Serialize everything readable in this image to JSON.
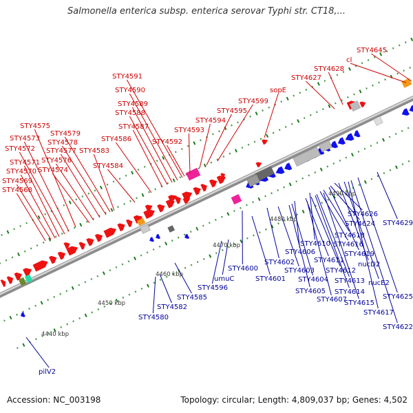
{
  "title": "Salmonella enterica subsp. enterica serovar Typhi str. CT18,...",
  "footer": {
    "accession": "Accession: NC_003198",
    "stats": "Topology: circular; Length: 4,809,037 bp; Genes: 4,502"
  },
  "colors": {
    "forward": "#ee1111",
    "reverse": "#1111ee",
    "pink": "#ee2299",
    "orange": "#f09a18",
    "grey": "#bbbbbb",
    "dark_grey": "#666666",
    "olive": "#6b8b2e",
    "teal": "#22ddaa",
    "red_label": "#cc0000",
    "blue_label": "#000099"
  },
  "kbp_labels": [
    "4440 kbp",
    "4450 kbp",
    "4460 kbp",
    "4470 kbp",
    "4480 kbp",
    "4490 kbp"
  ],
  "upper_labels": [
    "STY4645",
    "cI",
    "STY4628",
    "STY4627",
    "sopE",
    "STY4599",
    "STY4595",
    "STY4594",
    "STY4593",
    "STY4591",
    "STY4590",
    "STY4589",
    "STY4588",
    "STY4587",
    "STY4586",
    "STY4592",
    "STY4575",
    "STY4579",
    "STY4573",
    "STY4578",
    "STY4572",
    "STY4577",
    "STY4583",
    "STY4576",
    "STY4571",
    "STY4574",
    "STY4584",
    "STY4570",
    "STY4569",
    "STY4568"
  ],
  "lower_labels": [
    "STY4626",
    "STY4629",
    "STY4624",
    "STY4618",
    "STY4610",
    "STY4616",
    "STY4606",
    "STY4619",
    "STY4611",
    "nucD2",
    "STY4602",
    "STY4603",
    "STY4612",
    "STY4600",
    "STY4601",
    "STY4604",
    "STY4613",
    "nucE2",
    "STY4614",
    "STY4605",
    "STY4625",
    "STY4607",
    "STY4615",
    "STY4617",
    "STY4622",
    "umuC",
    "STY4596",
    "STY4585",
    "STY4582",
    "STY4580",
    "pilV2"
  ]
}
